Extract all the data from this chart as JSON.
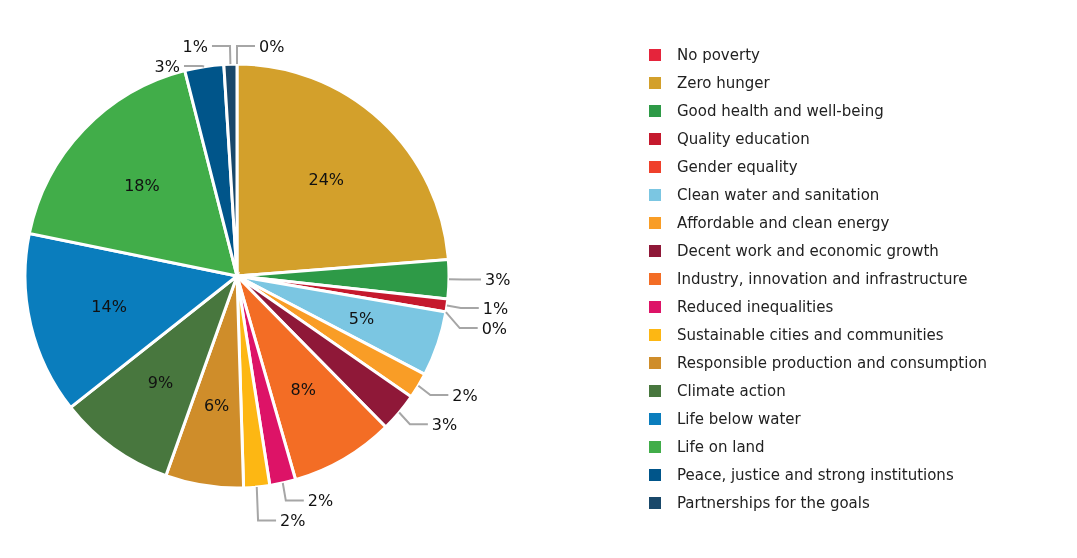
{
  "chart_data": {
    "type": "pie",
    "categories": [
      "No poverty",
      "Zero hunger",
      "Good health and well-being",
      "Quality education",
      "Gender equality",
      "Clean water and sanitation",
      "Affordable and clean energy",
      "Decent work and economic growth",
      "Industry, innovation and infrastructure",
      "Reduced inequalities",
      "Sustainable cities and communities",
      "Responsible production and consumption",
      "Climate action",
      "Life below water",
      "Life on land",
      "Peace, justice and strong institutions",
      "Partnerships for the goals"
    ],
    "values": [
      0,
      24,
      3,
      1,
      0,
      5,
      2,
      3,
      8,
      2,
      2,
      6,
      9,
      14,
      18,
      3,
      1
    ],
    "colors": [
      "#e5243b",
      "#d3a02b",
      "#2e9a47",
      "#c5192d",
      "#ef402b",
      "#7bc6e2",
      "#f99d26",
      "#8f1838",
      "#f36d25",
      "#dd1367",
      "#fdb713",
      "#cf8d2a",
      "#48773e",
      "#0a7dbd",
      "#41ad49",
      "#00558a",
      "#19486a"
    ],
    "value_labels": [
      "0%",
      "24%",
      "3%",
      "1%",
      "0%",
      "5%",
      "2%",
      "3%",
      "8%",
      "2%",
      "2%",
      "6%",
      "9%",
      "14%",
      "18%",
      "3%",
      "1%"
    ],
    "legend": "right"
  }
}
